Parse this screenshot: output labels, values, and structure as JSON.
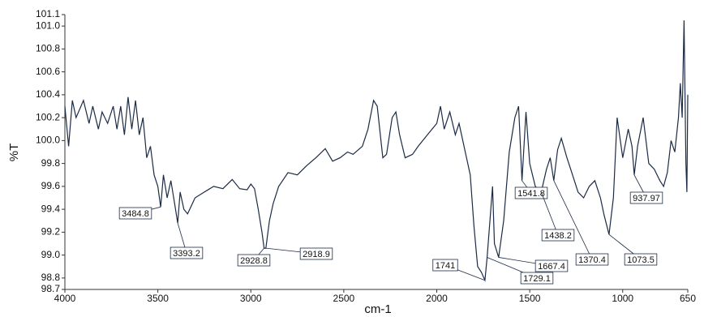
{
  "chart_data": {
    "type": "line",
    "xlabel": "cm-1",
    "ylabel": "%T",
    "xlim": [
      4000,
      650
    ],
    "ylim": [
      98.7,
      101.1
    ],
    "xticks": [
      4000,
      3500,
      3000,
      2500,
      2000,
      1500,
      1000,
      650
    ],
    "yticks": [
      98.7,
      98.8,
      {
        "value": 99,
        "label": "99.0"
      },
      99.2,
      99.4,
      99.6,
      99.8,
      {
        "value": 100,
        "label": "100.0"
      },
      100.2,
      100.4,
      100.6,
      100.8,
      {
        "value": 101,
        "label": "101.0"
      },
      101.1
    ],
    "series": [
      {
        "color": "#1c2b45",
        "x": [
          4000,
          3980,
          3960,
          3940,
          3900,
          3870,
          3850,
          3820,
          3800,
          3770,
          3740,
          3720,
          3700,
          3680,
          3660,
          3640,
          3620,
          3600,
          3580,
          3560,
          3540,
          3520,
          3500,
          3484.8,
          3470,
          3450,
          3430,
          3410,
          3393.2,
          3380,
          3360,
          3340,
          3300,
          3250,
          3200,
          3150,
          3100,
          3060,
          3020,
          3000,
          2980,
          2960,
          2940,
          2928.8,
          2918.9,
          2900,
          2880,
          2850,
          2800,
          2750,
          2700,
          2650,
          2600,
          2560,
          2520,
          2480,
          2450,
          2400,
          2370,
          2340,
          2320,
          2290,
          2270,
          2240,
          2220,
          2200,
          2170,
          2130,
          2100,
          2050,
          2000,
          1980,
          1960,
          1930,
          1900,
          1880,
          1860,
          1840,
          1820,
          1800,
          1780,
          1760,
          1741,
          1729.1,
          1700,
          1690,
          1667.4,
          1640,
          1610,
          1580,
          1560,
          1541.8,
          1520,
          1500,
          1470,
          1438.2,
          1410,
          1390,
          1370.4,
          1350,
          1330,
          1300,
          1270,
          1240,
          1210,
          1180,
          1150,
          1120,
          1100,
          1073.5,
          1050,
          1030,
          1000,
          970,
          950,
          937.97,
          920,
          890,
          860,
          830,
          800,
          780,
          760,
          740,
          720,
          700,
          690,
          680,
          670,
          660,
          655,
          650
        ],
        "values": [
          100.3,
          99.95,
          100.35,
          100.2,
          100.35,
          100.15,
          100.3,
          100.1,
          100.25,
          100.15,
          100.3,
          100.1,
          100.3,
          100.05,
          100.38,
          100.1,
          100.35,
          100.05,
          100.2,
          99.85,
          99.95,
          99.7,
          99.6,
          99.42,
          99.7,
          99.5,
          99.65,
          99.45,
          99.28,
          99.55,
          99.4,
          99.36,
          99.5,
          99.55,
          99.6,
          99.58,
          99.66,
          99.58,
          99.57,
          99.62,
          99.58,
          99.4,
          99.2,
          99.06,
          99.06,
          99.3,
          99.45,
          99.6,
          99.72,
          99.7,
          99.78,
          99.85,
          99.93,
          99.82,
          99.85,
          99.9,
          99.88,
          99.95,
          100.1,
          100.35,
          100.3,
          99.85,
          99.88,
          100.2,
          100.25,
          100.05,
          99.85,
          99.88,
          99.95,
          100.05,
          100.15,
          100.3,
          100.1,
          100.25,
          100.05,
          100.15,
          100.0,
          99.85,
          99.7,
          99.25,
          98.9,
          98.85,
          98.78,
          98.98,
          99.6,
          99.1,
          98.98,
          99.3,
          99.9,
          100.2,
          100.3,
          99.65,
          100.25,
          99.8,
          99.6,
          99.55,
          99.75,
          99.85,
          99.65,
          99.92,
          100.02,
          99.85,
          99.7,
          99.55,
          99.5,
          99.6,
          99.65,
          99.5,
          99.35,
          99.18,
          99.5,
          100.2,
          99.85,
          100.1,
          99.95,
          99.7,
          99.95,
          100.2,
          99.8,
          99.75,
          99.65,
          99.6,
          99.72,
          100.0,
          99.9,
          100.2,
          100.5,
          100.2,
          101.05,
          99.8,
          99.55,
          100.4
        ]
      }
    ],
    "annotations": [
      3484.8,
      3393.2,
      2928.8,
      2918.9,
      1741,
      1729.1,
      1667.4,
      1541.8,
      1438.2,
      1370.4,
      1073.5,
      937.97
    ]
  }
}
